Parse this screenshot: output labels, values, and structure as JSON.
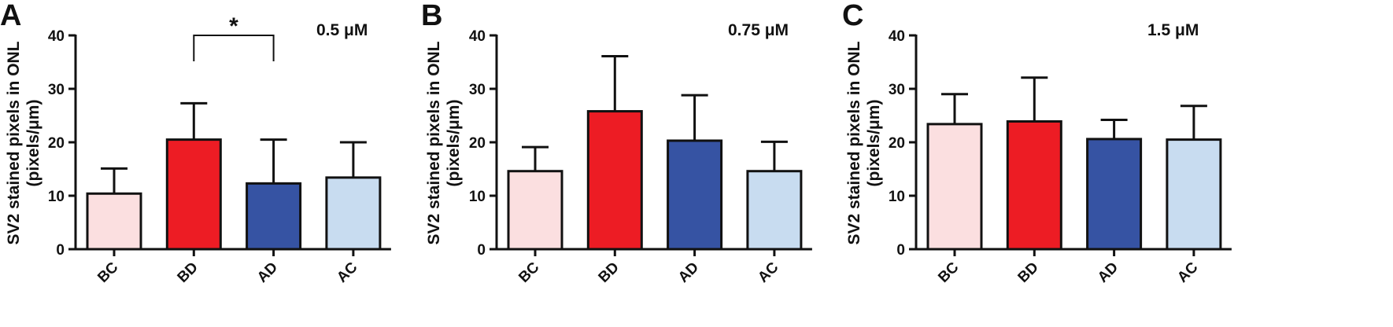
{
  "chart_data": [
    {
      "type": "bar",
      "panel_label": "A",
      "concentration": "0.5 μM",
      "ylabel_line1": "SV2 stained pixels in ONL",
      "ylabel_line2": "(pixels/μm)",
      "ylim": [
        0,
        40
      ],
      "yticks": [
        "0",
        "10",
        "20",
        "30",
        "40"
      ],
      "categories": [
        "BC",
        "BD",
        "AD",
        "AC"
      ],
      "values": [
        10.4,
        20.5,
        12.3,
        13.4
      ],
      "errors": [
        4.7,
        6.8,
        8.2,
        6.6
      ],
      "significance": {
        "from": "BD",
        "to": "AD",
        "label": "*"
      }
    },
    {
      "type": "bar",
      "panel_label": "B",
      "concentration": "0.75 μM",
      "ylabel_line1": "SV2 stained pixels in ONL",
      "ylabel_line2": "(pixels/μm)",
      "ylim": [
        0,
        40
      ],
      "yticks": [
        "0",
        "10",
        "20",
        "30",
        "40"
      ],
      "categories": [
        "BC",
        "BD",
        "AD",
        "AC"
      ],
      "values": [
        14.6,
        25.8,
        20.3,
        14.6
      ],
      "errors": [
        4.5,
        10.3,
        8.5,
        5.5
      ]
    },
    {
      "type": "bar",
      "panel_label": "C",
      "concentration": "1.5 μM",
      "ylabel_line1": "SV2 stained pixels in ONL",
      "ylabel_line2": "(pixels/μm)",
      "ylim": [
        0,
        40
      ],
      "yticks": [
        "0",
        "10",
        "20",
        "30",
        "40"
      ],
      "categories": [
        "BC",
        "BD",
        "AD",
        "AC"
      ],
      "values": [
        23.4,
        23.9,
        20.6,
        20.5
      ],
      "errors": [
        5.6,
        8.2,
        3.6,
        6.3
      ]
    }
  ],
  "colors": {
    "BC": "#fbdfe0",
    "BD": "#ed1c24",
    "AD": "#3653a3",
    "AC": "#c8dcf0",
    "stroke": "#111111"
  }
}
